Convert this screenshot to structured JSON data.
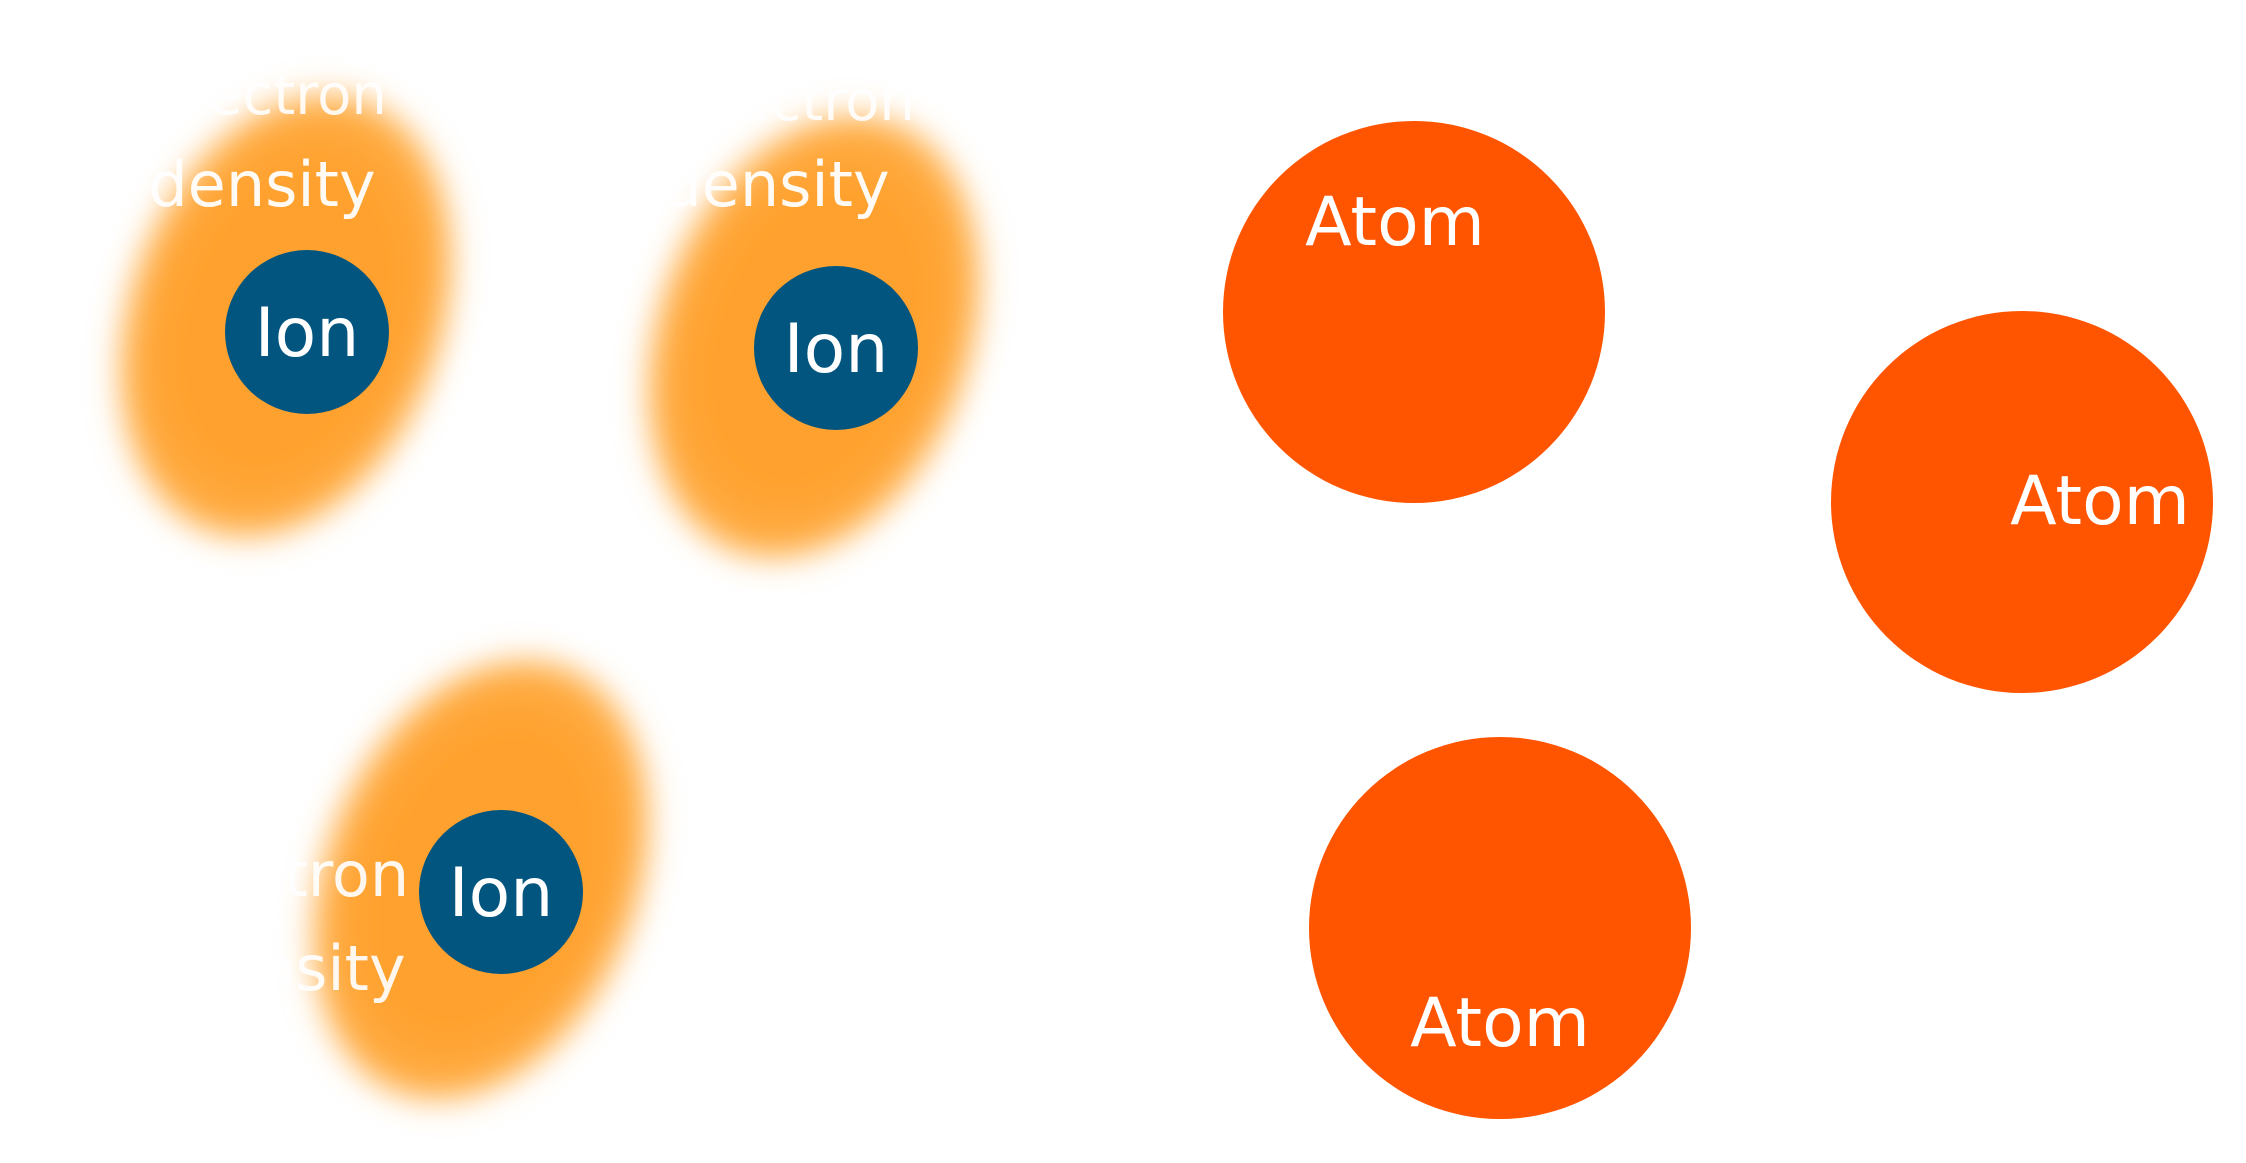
{
  "colors": {
    "background": "#ffffff",
    "ion_fill": "#02557f",
    "atom_fill": "#ff5500",
    "cloud_core": "#ffa12f",
    "cloud_edge": "#ffb04a",
    "label_text": "#ffffff"
  },
  "ions": [
    {
      "label": "Ion",
      "cloud_text_lines": [
        "Electron",
        "density"
      ]
    },
    {
      "label": "Ion",
      "cloud_text_lines": [
        "Electron",
        "density"
      ]
    },
    {
      "label": "Ion",
      "cloud_text_lines": [
        "Electron",
        "density"
      ]
    }
  ],
  "atoms": [
    {
      "label": "Atom"
    },
    {
      "label": "Atom"
    },
    {
      "label": "Atom"
    }
  ]
}
